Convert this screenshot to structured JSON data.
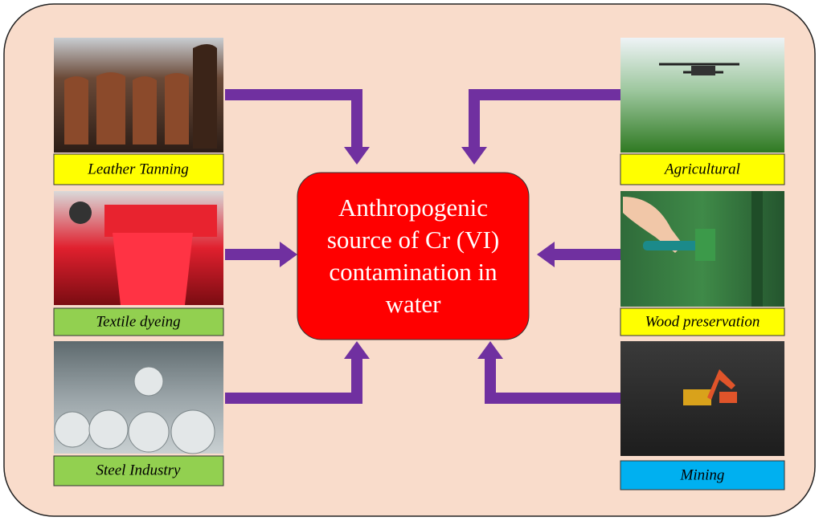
{
  "center": {
    "lines": [
      "Anthropogenic",
      "source of Cr (VI)",
      "contamination in",
      "water"
    ]
  },
  "nodes": [
    {
      "label": "Leather Tanning"
    },
    {
      "label": "Textile dyeing"
    },
    {
      "label": "Steel Industry"
    },
    {
      "label": "Agricultural"
    },
    {
      "label": "Wood preservation"
    },
    {
      "label": "Mining"
    }
  ]
}
